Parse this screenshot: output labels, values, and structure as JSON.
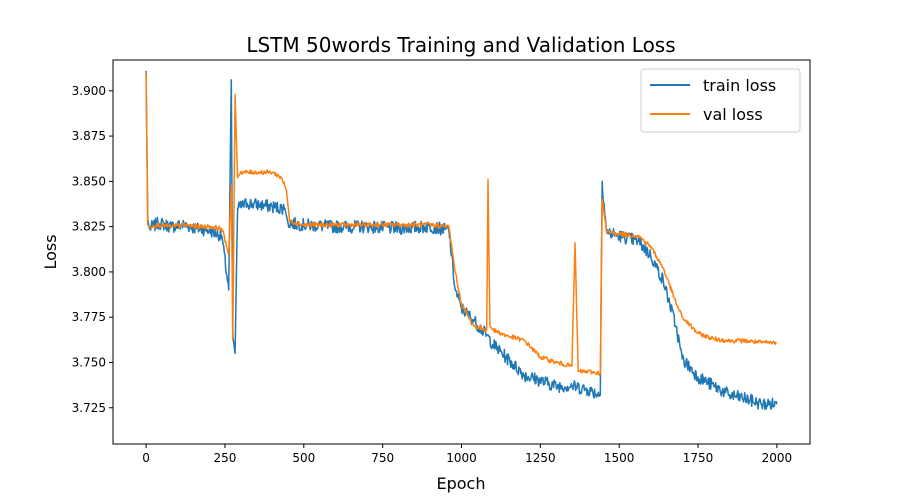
{
  "chart_data": {
    "type": "line",
    "title": "LSTM 50words Training and Validation Loss",
    "xlabel": "Epoch",
    "ylabel": "Loss",
    "xlim": [
      -105,
      2105
    ],
    "ylim": [
      3.705,
      3.917
    ],
    "xticks": [
      0,
      250,
      500,
      750,
      1000,
      1250,
      1500,
      1750,
      2000
    ],
    "yticks": [
      3.725,
      3.75,
      3.775,
      3.8,
      3.825,
      3.85,
      3.875,
      3.9
    ],
    "ytick_labels": [
      "3.725",
      "3.750",
      "3.775",
      "3.800",
      "3.825",
      "3.850",
      "3.875",
      "3.900"
    ],
    "grid": false,
    "legend_position": "upper-right",
    "series": [
      {
        "name": "train loss",
        "color": "#1f77b4",
        "x": [
          0,
          5,
          10,
          40,
          80,
          120,
          160,
          200,
          240,
          262,
          270,
          275,
          282,
          290,
          320,
          360,
          400,
          440,
          450,
          500,
          600,
          700,
          800,
          900,
          960,
          980,
          1000,
          1040,
          1080,
          1100,
          1140,
          1200,
          1250,
          1300,
          1350,
          1400,
          1440,
          1446,
          1460,
          1500,
          1560,
          1600,
          1640,
          1680,
          1700,
          1750,
          1800,
          1850,
          1900,
          1950,
          2000
        ],
        "y": [
          3.911,
          3.83,
          3.824,
          3.827,
          3.825,
          3.826,
          3.824,
          3.823,
          3.82,
          3.79,
          3.906,
          3.765,
          3.755,
          3.835,
          3.838,
          3.837,
          3.836,
          3.835,
          3.827,
          3.826,
          3.825,
          3.825,
          3.824,
          3.825,
          3.823,
          3.79,
          3.78,
          3.773,
          3.765,
          3.76,
          3.753,
          3.743,
          3.74,
          3.737,
          3.737,
          3.735,
          3.732,
          3.85,
          3.822,
          3.82,
          3.817,
          3.809,
          3.795,
          3.77,
          3.752,
          3.742,
          3.737,
          3.732,
          3.73,
          3.727,
          3.727
        ]
      },
      {
        "name": "val loss",
        "color": "#ff7f0e",
        "x": [
          0,
          5,
          10,
          40,
          80,
          120,
          160,
          200,
          240,
          262,
          270,
          275,
          282,
          290,
          300,
          350,
          400,
          430,
          445,
          455,
          500,
          600,
          700,
          800,
          900,
          960,
          980,
          1000,
          1040,
          1080,
          1084,
          1090,
          1100,
          1140,
          1200,
          1250,
          1300,
          1350,
          1360,
          1370,
          1400,
          1440,
          1446,
          1460,
          1500,
          1560,
          1600,
          1640,
          1680,
          1700,
          1750,
          1800,
          1850,
          1900,
          1950,
          2000
        ],
        "y": [
          3.91,
          3.826,
          3.825,
          3.826,
          3.825,
          3.826,
          3.825,
          3.825,
          3.824,
          3.81,
          3.848,
          3.762,
          3.898,
          3.852,
          3.855,
          3.855,
          3.855,
          3.852,
          3.845,
          3.828,
          3.826,
          3.826,
          3.826,
          3.826,
          3.826,
          3.825,
          3.8,
          3.782,
          3.77,
          3.768,
          3.851,
          3.77,
          3.768,
          3.765,
          3.762,
          3.753,
          3.75,
          3.748,
          3.816,
          3.745,
          3.745,
          3.744,
          3.84,
          3.822,
          3.821,
          3.82,
          3.814,
          3.802,
          3.783,
          3.775,
          3.766,
          3.763,
          3.762,
          3.762,
          3.761,
          3.761
        ]
      }
    ]
  }
}
